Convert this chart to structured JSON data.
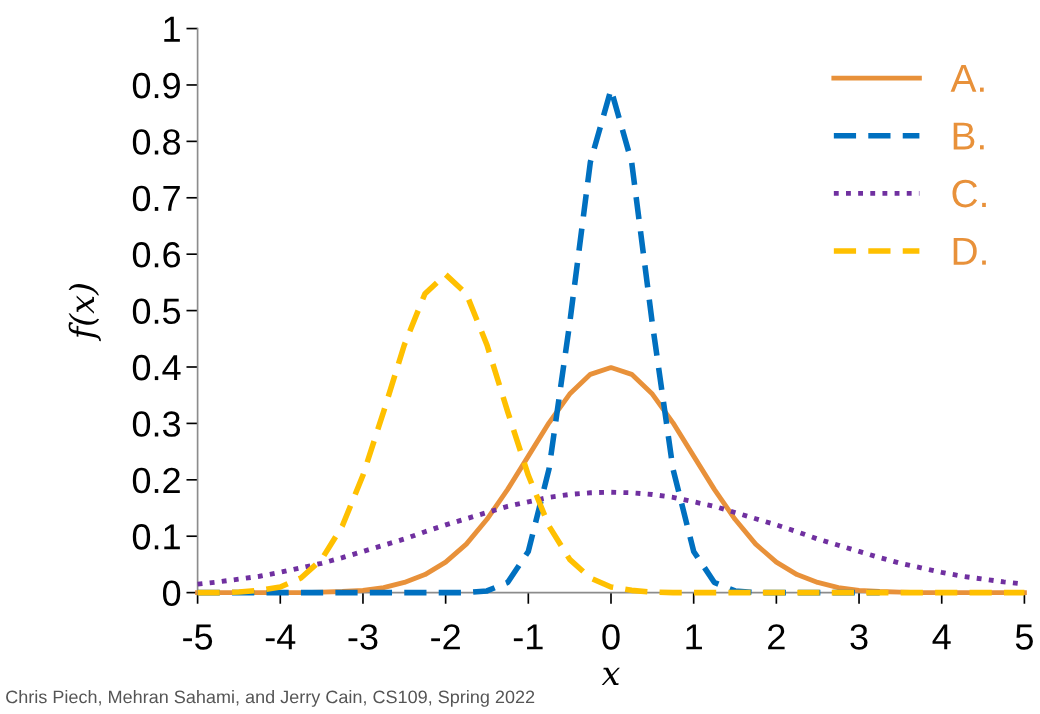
{
  "chart_data": {
    "type": "line",
    "xlabel": "x",
    "ylabel": "f(x)",
    "x": [
      -5,
      -4.75,
      -4.5,
      -4.25,
      -4,
      -3.75,
      -3.5,
      -3.25,
      -3,
      -2.75,
      -2.5,
      -2.25,
      -2,
      -1.75,
      -1.5,
      -1.25,
      -1,
      -0.75,
      -0.5,
      -0.25,
      0,
      0.25,
      0.5,
      0.75,
      1,
      1.25,
      1.5,
      1.75,
      2,
      2.25,
      2.5,
      2.75,
      3,
      3.25,
      3.5,
      3.75,
      4,
      4.25,
      4.5,
      4.75,
      5
    ],
    "series": [
      {
        "name": "A.",
        "color": "#e8913a",
        "line_style": "solid",
        "values": [
          0,
          0,
          0,
          0,
          0,
          0,
          0.001,
          0.002,
          0.004,
          0.009,
          0.018,
          0.032,
          0.054,
          0.086,
          0.13,
          0.183,
          0.242,
          0.301,
          0.352,
          0.387,
          0.399,
          0.387,
          0.352,
          0.301,
          0.242,
          0.183,
          0.13,
          0.086,
          0.054,
          0.032,
          0.018,
          0.009,
          0.004,
          0.002,
          0.001,
          0,
          0,
          0,
          0,
          0,
          0
        ]
      },
      {
        "name": "B.",
        "color": "#0070c0",
        "line_style": "dashed",
        "values": [
          0,
          0,
          0,
          0,
          0,
          0,
          0,
          0,
          0,
          0,
          0,
          0,
          0,
          0,
          0.003,
          0.018,
          0.073,
          0.219,
          0.477,
          0.763,
          0.892,
          0.763,
          0.477,
          0.219,
          0.073,
          0.018,
          0.003,
          0,
          0,
          0,
          0,
          0,
          0,
          0,
          null,
          null,
          null,
          null,
          null,
          null,
          null
        ]
      },
      {
        "name": "C.",
        "color": "#7030a0",
        "line_style": "dotted",
        "values": [
          0.015,
          0.019,
          0.024,
          0.029,
          0.036,
          0.044,
          0.052,
          0.062,
          0.073,
          0.084,
          0.095,
          0.108,
          0.12,
          0.131,
          0.142,
          0.153,
          0.161,
          0.169,
          0.174,
          0.177,
          0.178,
          0.177,
          0.174,
          0.169,
          0.161,
          0.153,
          0.142,
          0.131,
          0.12,
          0.108,
          0.095,
          0.084,
          0.073,
          0.062,
          0.052,
          0.044,
          0.036,
          0.029,
          0.024,
          0.019,
          0.015
        ]
      },
      {
        "name": "D.",
        "color": "#ffc000",
        "line_style": "dashed",
        "values": [
          0,
          0,
          0.001,
          0.004,
          0.01,
          0.026,
          0.059,
          0.118,
          0.208,
          0.321,
          0.439,
          0.53,
          0.564,
          0.53,
          0.439,
          0.321,
          0.208,
          0.118,
          0.059,
          0.026,
          0.01,
          0.004,
          0.001,
          0,
          0,
          0,
          0,
          0,
          0,
          0,
          0,
          0,
          0,
          0,
          0,
          0,
          0,
          0,
          0,
          0,
          0
        ]
      }
    ],
    "xlim": [
      -5,
      5
    ],
    "xticks": [
      -5,
      -4,
      -3,
      -2,
      -1,
      0,
      1,
      2,
      3,
      4,
      5
    ],
    "ylim": [
      0,
      1
    ],
    "yticks": [
      0,
      0.1,
      0.2,
      0.3,
      0.4,
      0.5,
      0.6,
      0.7,
      0.8,
      0.9,
      1
    ],
    "grid": false,
    "legend": "top right",
    "marker": "none",
    "annotations": [
      "Chris Piech, Mehran Sahami, and Jerry Cain, CS109, Spring 2022"
    ]
  }
}
